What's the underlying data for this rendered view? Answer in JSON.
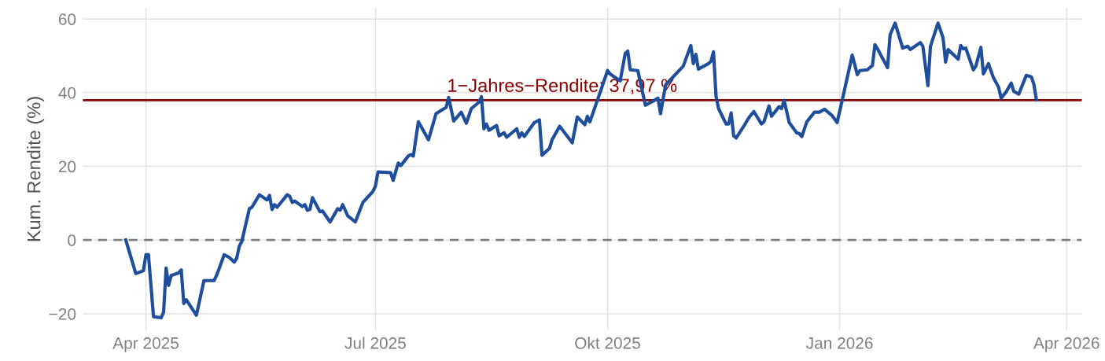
{
  "chart_data": {
    "type": "line",
    "ylabel": "Kum. Rendite (%)",
    "x": [
      "2025-03-24",
      "2025-03-28",
      "2025-03-31",
      "2025-04-01",
      "2025-04-02",
      "2025-04-04",
      "2025-04-07",
      "2025-04-08",
      "2025-04-09",
      "2025-04-10",
      "2025-04-11",
      "2025-04-14",
      "2025-04-15",
      "2025-04-16",
      "2025-04-17",
      "2025-04-21",
      "2025-04-24",
      "2025-04-28",
      "2025-04-29",
      "2025-04-30",
      "2025-05-02",
      "2025-05-04",
      "2025-05-06",
      "2025-05-07",
      "2025-05-08",
      "2025-05-09",
      "2025-05-12",
      "2025-05-13",
      "2025-05-16",
      "2025-05-19",
      "2025-05-20",
      "2025-05-21",
      "2025-05-22",
      "2025-05-23",
      "2025-05-27",
      "2025-05-28",
      "2025-05-29",
      "2025-05-30",
      "2025-06-02",
      "2025-06-03",
      "2025-06-04",
      "2025-06-05",
      "2025-06-06",
      "2025-06-09",
      "2025-06-10",
      "2025-06-13",
      "2025-06-16",
      "2025-06-17",
      "2025-06-18",
      "2025-06-20",
      "2025-06-23",
      "2025-06-26",
      "2025-06-30",
      "2025-07-01",
      "2025-07-02",
      "2025-07-07",
      "2025-07-08",
      "2025-07-10",
      "2025-07-11",
      "2025-07-14",
      "2025-07-15",
      "2025-07-16",
      "2025-07-18",
      "2025-07-22",
      "2025-07-25",
      "2025-07-29",
      "2025-07-30",
      "2025-08-01",
      "2025-08-04",
      "2025-08-06",
      "2025-08-08",
      "2025-08-11",
      "2025-08-12",
      "2025-08-13",
      "2025-08-14",
      "2025-08-15",
      "2025-08-18",
      "2025-08-19",
      "2025-08-21",
      "2025-08-22",
      "2025-08-26",
      "2025-08-27",
      "2025-08-28",
      "2025-08-29",
      "2025-09-02",
      "2025-09-04",
      "2025-09-05",
      "2025-09-08",
      "2025-09-09",
      "2025-09-12",
      "2025-09-17",
      "2025-09-19",
      "2025-09-22",
      "2025-09-23",
      "2025-09-24",
      "2025-09-28",
      "2025-10-01",
      "2025-10-02",
      "2025-10-06",
      "2025-10-08",
      "2025-10-09",
      "2025-10-10",
      "2025-10-13",
      "2025-10-16",
      "2025-10-19",
      "2025-10-21",
      "2025-10-22",
      "2025-10-24",
      "2025-10-31",
      "2025-11-03",
      "2025-11-04",
      "2025-11-05",
      "2025-11-06",
      "2025-11-10",
      "2025-11-11",
      "2025-11-12",
      "2025-11-13",
      "2025-11-14",
      "2025-11-17",
      "2025-11-18",
      "2025-11-19",
      "2025-11-20",
      "2025-11-21",
      "2025-11-24",
      "2025-11-26",
      "2025-11-28",
      "2025-12-01",
      "2025-12-02",
      "2025-12-04",
      "2025-12-05",
      "2025-12-08",
      "2025-12-09",
      "2025-12-10",
      "2025-12-12",
      "2025-12-15",
      "2025-12-16",
      "2025-12-17",
      "2025-12-19",
      "2025-12-22",
      "2025-12-24",
      "2025-12-26",
      "2025-12-29",
      "2025-12-31",
      "2026-01-02",
      "2026-01-06",
      "2026-01-08",
      "2026-01-09",
      "2026-01-12",
      "2026-01-14",
      "2026-01-15",
      "2026-01-16",
      "2026-01-20",
      "2026-01-21",
      "2026-01-23",
      "2026-01-26",
      "2026-01-28",
      "2026-01-29",
      "2026-02-02",
      "2026-02-03",
      "2026-02-05",
      "2026-02-06",
      "2026-02-09",
      "2026-02-11",
      "2026-02-12",
      "2026-02-13",
      "2026-02-17",
      "2026-02-18",
      "2026-02-19",
      "2026-02-20",
      "2026-02-23",
      "2026-02-24",
      "2026-02-26",
      "2026-02-27",
      "2026-03-01",
      "2026-03-03",
      "2026-03-05",
      "2026-03-06",
      "2026-03-08",
      "2026-03-10",
      "2026-03-11",
      "2026-03-13",
      "2026-03-16",
      "2026-03-18",
      "2026-03-19",
      "2026-03-20"
    ],
    "series": [
      {
        "color": "#1f4e9c",
        "values": [
          0,
          -9.1,
          -8.3,
          -4.0,
          -4.0,
          -20.8,
          -21.1,
          -19.6,
          -7.6,
          -12.3,
          -9.6,
          -8.9,
          -8.1,
          -17.2,
          -16.2,
          -20.4,
          -11,
          -11,
          -9.6,
          -7.8,
          -4.0,
          -4.7,
          -6.0,
          -4.9,
          -1.7,
          -0.4,
          8.5,
          8.9,
          12.3,
          10.9,
          12.1,
          8.3,
          9.6,
          8.9,
          12.3,
          11.9,
          10.2,
          10.6,
          9.1,
          9.6,
          8.1,
          8.3,
          11.5,
          7.7,
          7.9,
          4.9,
          8.5,
          8.1,
          9.6,
          6.6,
          4.9,
          10.2,
          13.2,
          14.7,
          18.5,
          18.3,
          16.2,
          20.9,
          20.2,
          22.8,
          23.2,
          22.8,
          32.1,
          27.2,
          34.3,
          36.0,
          38.7,
          32.3,
          34.7,
          31.7,
          35.7,
          37.4,
          38.9,
          30.2,
          31.5,
          29.8,
          31.1,
          28.3,
          29.1,
          27.9,
          30.2,
          27.9,
          29.1,
          28.1,
          31.9,
          32.6,
          23.0,
          24.9,
          27.2,
          30.9,
          26.4,
          33.4,
          31.3,
          33.6,
          32.1,
          40.0,
          46.0,
          45.1,
          43.2,
          50.6,
          51.3,
          46.2,
          46.0,
          36.6,
          37.7,
          38.5,
          34.3,
          42.1,
          47.2,
          52.8,
          47.9,
          50.4,
          46.4,
          47.9,
          48.5,
          51.1,
          39.1,
          35.7,
          31.5,
          31.5,
          34.5,
          28.3,
          27.7,
          30.9,
          33.2,
          34.9,
          31.5,
          32.1,
          36.4,
          33.6,
          36.2,
          35.7,
          37.9,
          31.9,
          29.1,
          28.9,
          28.1,
          32.1,
          34.7,
          34.7,
          35.5,
          33.8,
          31.9,
          37.9,
          50.2,
          44.9,
          46.0,
          46.2,
          47.4,
          53.0,
          51.9,
          46.8,
          55.7,
          58.9,
          52.1,
          52.6,
          51.7,
          53.6,
          52.6,
          41.9,
          52.6,
          58.9,
          54.9,
          48.3,
          51.7,
          49.1,
          52.8,
          51.9,
          52.1,
          46.2,
          47.2,
          52.3,
          45.1,
          47.9,
          44.0,
          41.5,
          38.5,
          40.2,
          42.6,
          40.4,
          39.6,
          44.7,
          44.3,
          42.3,
          38.1
        ]
      }
    ],
    "xlim": [
      "2025-03-07",
      "2026-04-07"
    ],
    "xticks": [
      {
        "value": "2025-04-01",
        "label": "Apr 2025"
      },
      {
        "value": "2025-07-01",
        "label": "Jul 2025"
      },
      {
        "value": "2025-10-01",
        "label": "Okt 2025"
      },
      {
        "value": "2026-01-01",
        "label": "Jan 2026"
      },
      {
        "value": "2026-04-01",
        "label": "Apr 2026"
      }
    ],
    "ylim": [
      -24.5,
      63
    ],
    "yticks": [
      -20,
      0,
      20,
      40,
      60
    ],
    "ref_lines": [
      {
        "axis": "y",
        "value": 0,
        "color": "#7f7f7f",
        "line_style": "dashed"
      },
      {
        "axis": "y",
        "value": 37.97,
        "color": "#8b0000",
        "line_style": "solid",
        "label": "1−Jahres−Rendite: 37,97 %"
      }
    ],
    "grid": true,
    "legend": false,
    "marker": "none",
    "line_style": "solid"
  }
}
